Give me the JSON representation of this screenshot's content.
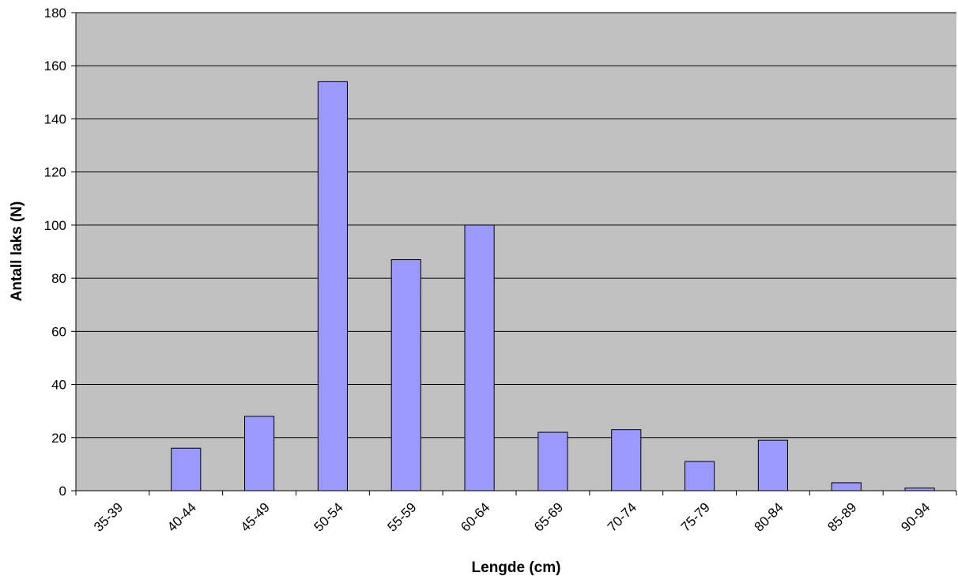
{
  "chart_data": {
    "type": "bar",
    "title": "",
    "xlabel": "Lengde (cm)",
    "ylabel": "Antall laks (N)",
    "ylim": [
      0,
      180
    ],
    "yticks": [
      0,
      20,
      40,
      60,
      80,
      100,
      120,
      140,
      160,
      180
    ],
    "categories": [
      "35-39",
      "40-44",
      "45-49",
      "50-54",
      "55-59",
      "60-64",
      "65-69",
      "70-74",
      "75-79",
      "80-84",
      "85-89",
      "90-94"
    ],
    "values": [
      0,
      16,
      28,
      154,
      87,
      100,
      22,
      23,
      11,
      19,
      3,
      1
    ],
    "grid": true,
    "legend": "none",
    "colors": {
      "plot_background": "#c0c0c0",
      "bar_fill": "#9999ff",
      "bar_stroke": "#000000",
      "gridline": "#000000"
    }
  }
}
